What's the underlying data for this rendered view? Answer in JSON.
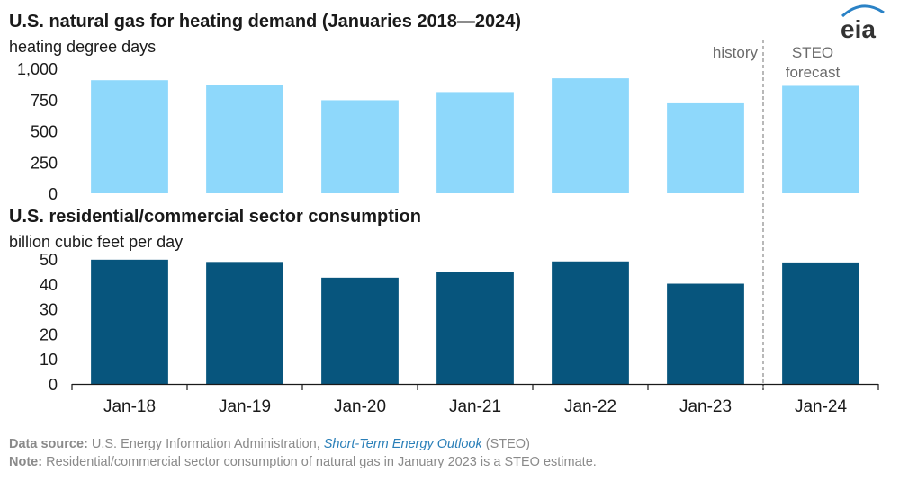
{
  "logo_text": "eia",
  "annotations": {
    "history": "history",
    "forecast_line1": "STEO",
    "forecast_line2": "forecast"
  },
  "footer": {
    "source_label": "Data source:",
    "source_text": " U.S. Energy Information Administration, ",
    "source_link": "Short-Term Energy Outlook",
    "source_suffix": " (STEO)",
    "note_label": "Note:",
    "note_text": " Residential/commercial sector consumption of natural gas in January 2023 is a STEO estimate."
  },
  "colors": {
    "top_bars": "#8ed8fb",
    "bottom_bars": "#07557d",
    "divider": "#8a8a8a",
    "logo_blue": "#2a82c6"
  },
  "chart_data": [
    {
      "type": "bar",
      "title": "U.S. natural gas for heating demand (Januaries 2018—2024)",
      "ylabel": "heating degree days",
      "categories": [
        "Jan-18",
        "Jan-19",
        "Jan-20",
        "Jan-21",
        "Jan-22",
        "Jan-23",
        "Jan-24"
      ],
      "values": [
        905,
        870,
        745,
        810,
        920,
        720,
        860
      ],
      "yticks": [
        "0",
        "250",
        "500",
        "750",
        "1,000"
      ],
      "ylim": [
        0,
        1000
      ]
    },
    {
      "type": "bar",
      "title": "U.S. residential/commercial sector consumption",
      "ylabel": "billion cubic feet per day",
      "categories": [
        "Jan-18",
        "Jan-19",
        "Jan-20",
        "Jan-21",
        "Jan-22",
        "Jan-23",
        "Jan-24"
      ],
      "values": [
        49.7,
        48.8,
        42.5,
        44.9,
        49.0,
        40.1,
        48.6
      ],
      "yticks": [
        "0",
        "10",
        "20",
        "30",
        "40",
        "50"
      ],
      "ylim": [
        0,
        50
      ]
    }
  ]
}
